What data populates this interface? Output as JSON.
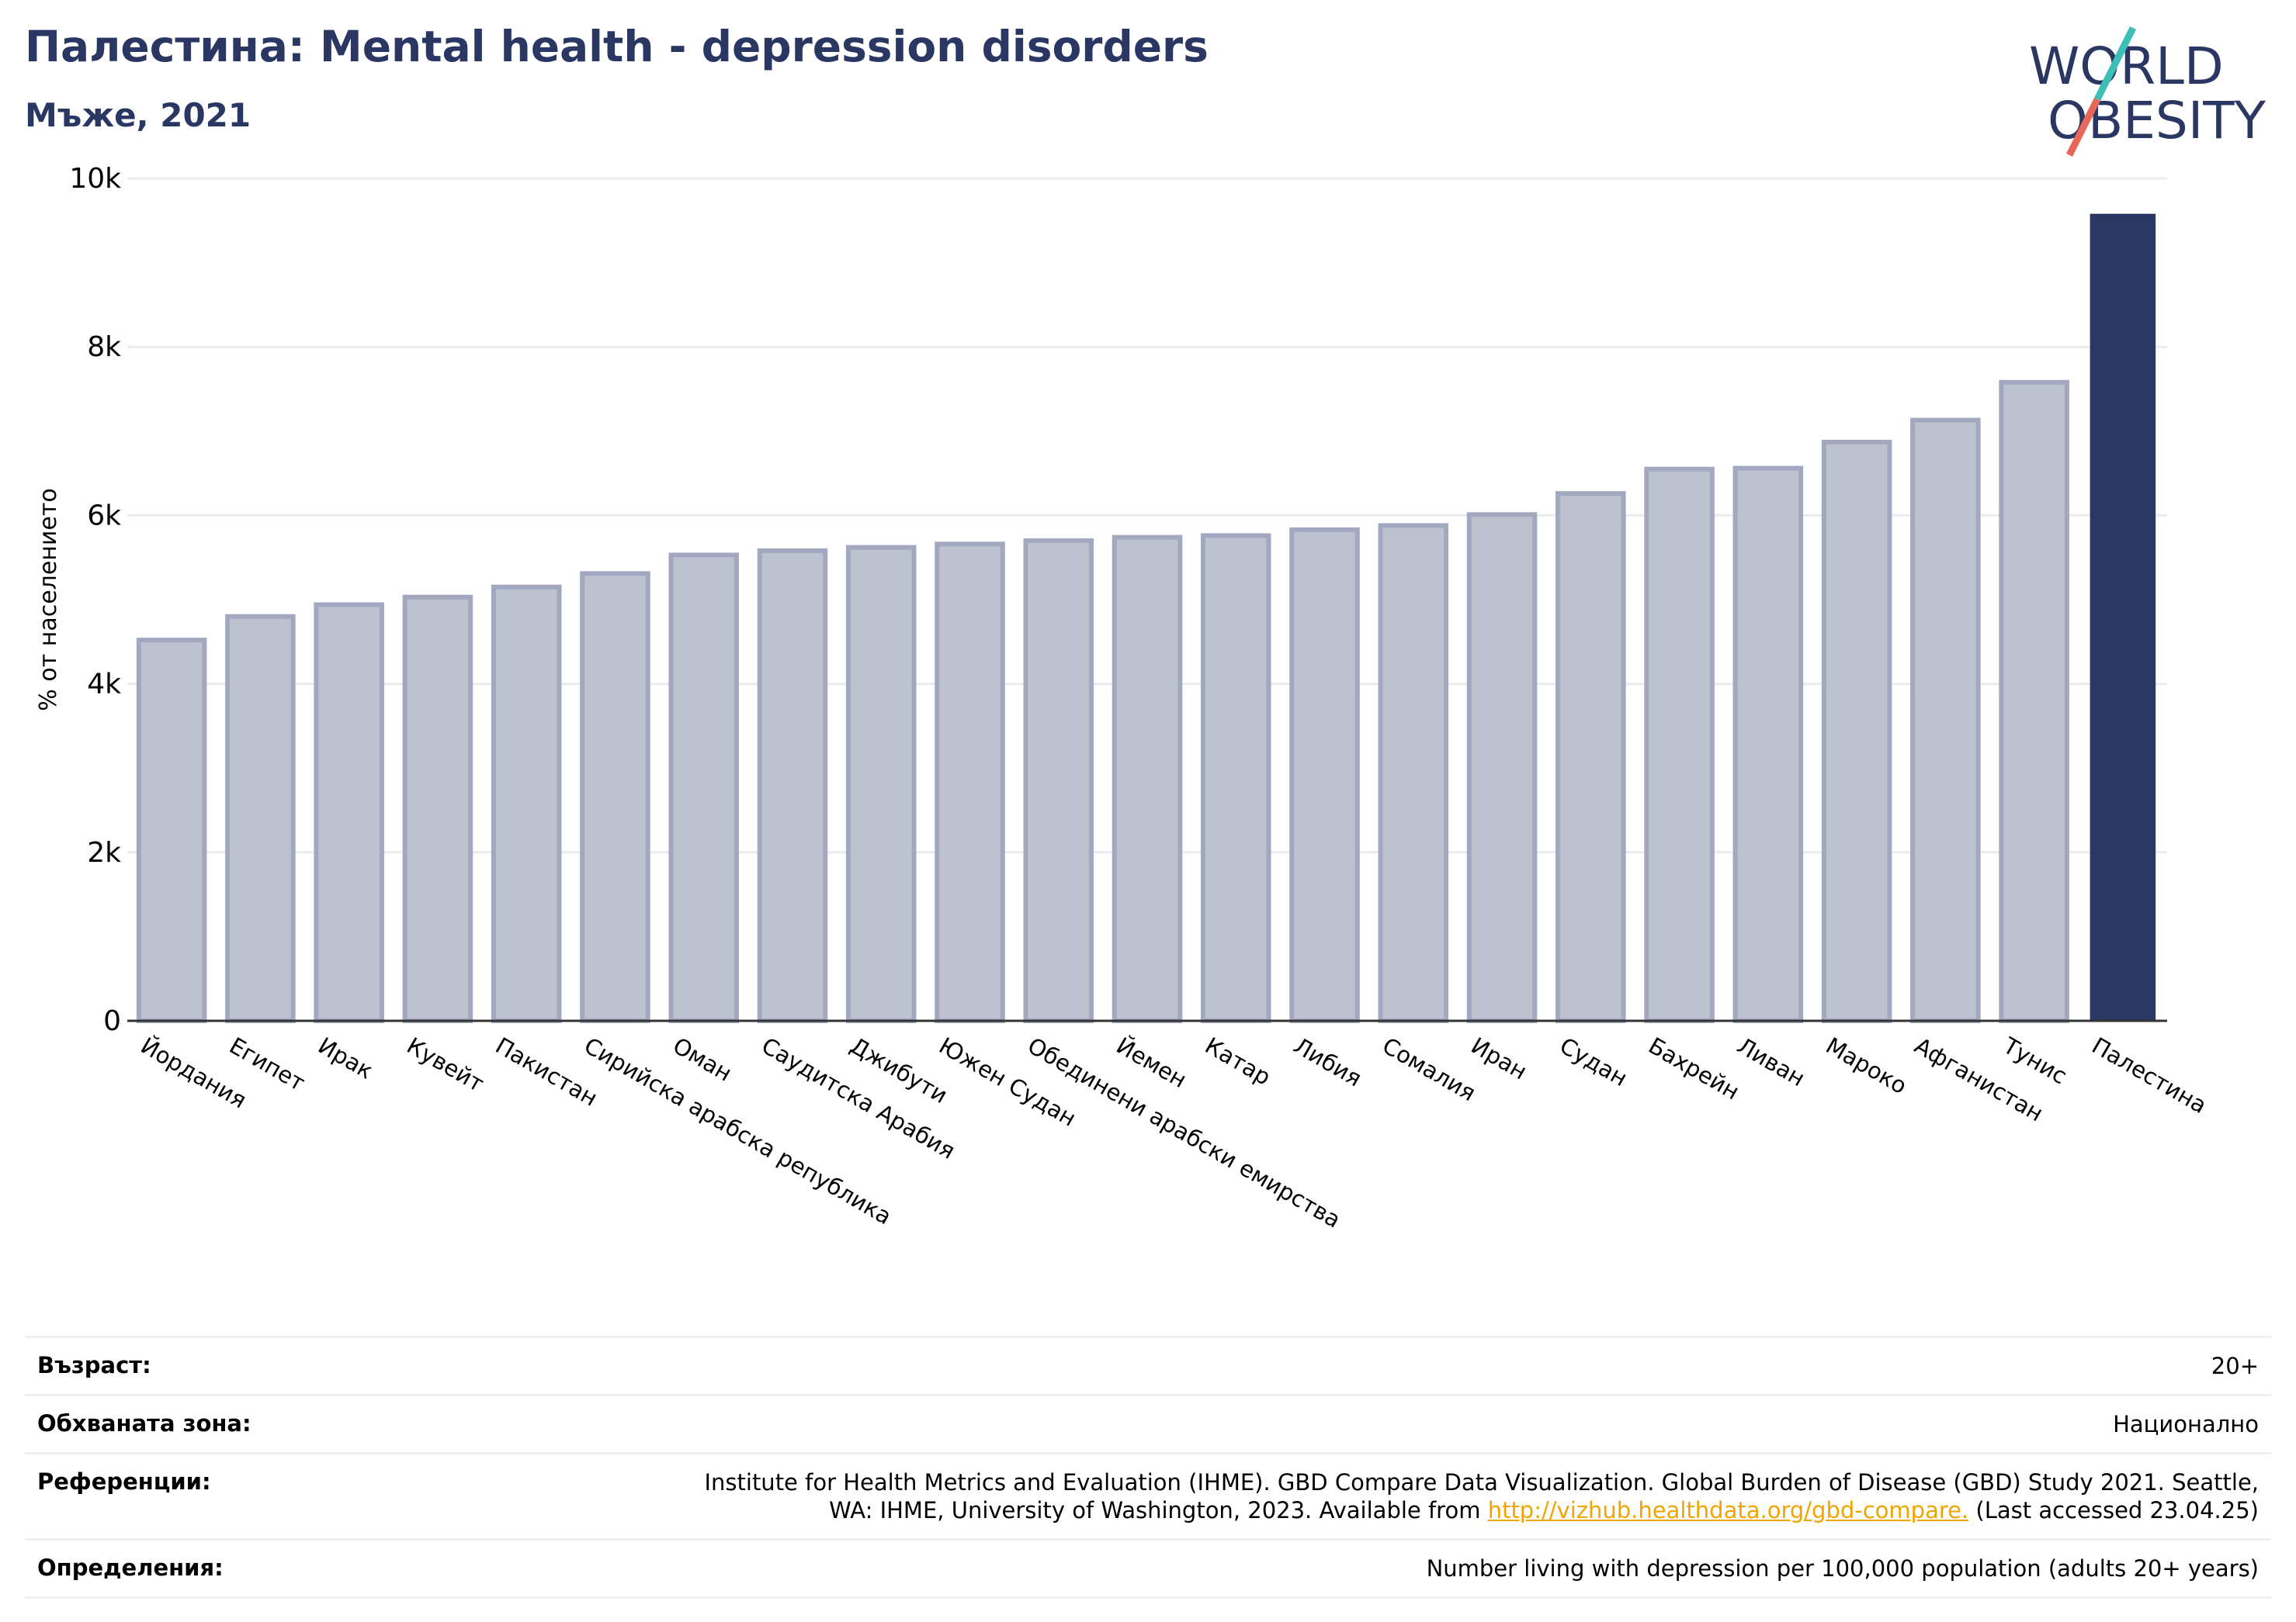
{
  "header": {
    "title": "Палестина: Mental health - depression disorders",
    "subtitle": "Мъже, 2021"
  },
  "logo": {
    "line1": "WORLD",
    "line2": "OBESITY",
    "colors": {
      "text": "#2b3763",
      "slash_top": "#3bbfb7",
      "slash_bottom": "#e8675a"
    }
  },
  "chart_data": {
    "type": "bar",
    "ylabel": "% от населението",
    "xlabel": "",
    "ylim": [
      0,
      10000
    ],
    "yticks": [
      0,
      2000,
      4000,
      6000,
      8000,
      10000
    ],
    "ytick_labels": [
      "0",
      "2k",
      "4k",
      "6k",
      "8k",
      "10k"
    ],
    "grid": true,
    "categories": [
      "Йордания",
      "Египет",
      "Ирак",
      "Кувейт",
      "Пакистан",
      "Сирийска арабска република",
      "Оман",
      "Саудитска Арабия",
      "Джибути",
      "Южен Судан",
      "Обединени арабски емирства",
      "Йемен",
      "Катар",
      "Либия",
      "Сомалия",
      "Иран",
      "Судан",
      "Бахрейн",
      "Ливан",
      "Мароко",
      "Афганистан",
      "Тунис",
      "Палестина"
    ],
    "values": [
      4520,
      4800,
      4940,
      5030,
      5150,
      5310,
      5530,
      5580,
      5620,
      5660,
      5700,
      5740,
      5760,
      5830,
      5880,
      6010,
      6260,
      6550,
      6560,
      6870,
      7130,
      7580,
      9580
    ],
    "highlight": "Палестина",
    "colors": {
      "bar": "#bec2cf",
      "bar_edge": "#a2a8c0",
      "highlight": "#2b3763",
      "grid": "#e9ebef",
      "axis": "#333333"
    }
  },
  "meta": {
    "age_label": "Възраст:",
    "age_value": "20+",
    "coverage_label": "Обхваната зона:",
    "coverage_value": "Национално",
    "references_label": "Референции:",
    "references_line1": "Institute for Health Metrics and Evaluation (IHME). GBD Compare Data Visualization. Global Burden of Disease (GBD) Study 2021. Seattle,",
    "references_line2_pre": "WA: IHME, University of Washington, 2023. Available from ",
    "references_link": "http://vizhub.healthdata.org/gbd-compare.",
    "references_line2_post": " (Last accessed 23.04.25)",
    "definitions_label": "Определения:",
    "definitions_value": "Number living with depression per 100,000 population (adults 20+ years)"
  }
}
